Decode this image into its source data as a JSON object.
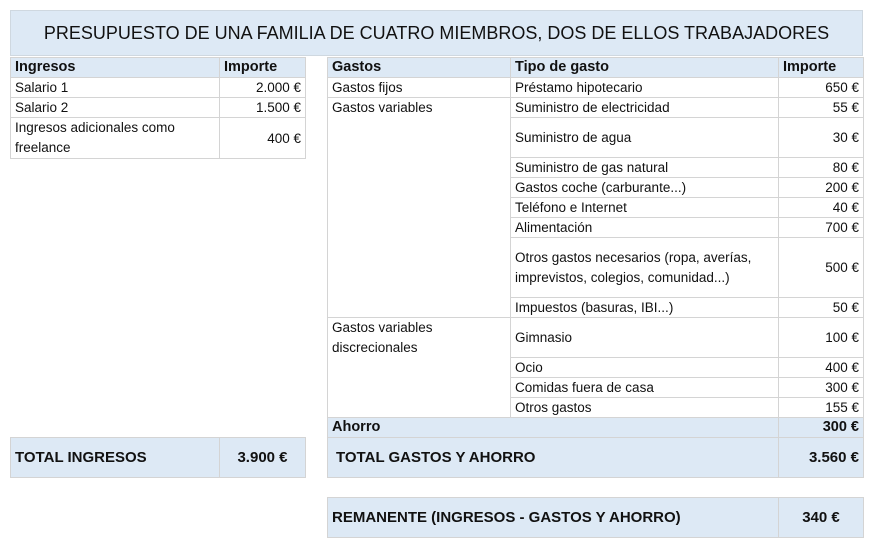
{
  "title": "PRESUPUESTO DE UNA FAMILIA DE CUATRO MIEMBROS, DOS DE ELLOS TRABAJADORES",
  "colors": {
    "header_bg": "#dde9f5",
    "border": "#d4d4d4"
  },
  "ingresos": {
    "headers": [
      "Ingresos",
      "Importe"
    ],
    "rows": [
      {
        "concepto": "Salario 1",
        "importe": "2.000 €"
      },
      {
        "concepto": "Salario 2",
        "importe": "1.500 €"
      },
      {
        "concepto": "Ingresos adicionales como freelance",
        "importe": "400 €"
      }
    ],
    "total_label": "TOTAL INGRESOS",
    "total_value": "3.900 €"
  },
  "gastos": {
    "headers": [
      "Gastos",
      "Tipo de gasto",
      "Importe"
    ],
    "categories": [
      "Gastos fijos",
      "Gastos variables",
      "Gastos variables discrecionales"
    ],
    "rows": [
      {
        "tipo": "Préstamo hipotecario",
        "importe": "650 €"
      },
      {
        "tipo": "Suministro de electricidad",
        "importe": "55 €"
      },
      {
        "tipo": "Suministro de agua",
        "importe": "30 €"
      },
      {
        "tipo": "Suministro de gas natural",
        "importe": "80 €"
      },
      {
        "tipo": "Gastos coche (carburante...)",
        "importe": "200 €"
      },
      {
        "tipo": "Teléfono e Internet",
        "importe": "40 €"
      },
      {
        "tipo": "Alimentación",
        "importe": "700 €"
      },
      {
        "tipo": "Otros gastos necesarios (ropa, averías, imprevistos,  colegios, comunidad...)",
        "importe": "500 €"
      },
      {
        "tipo": "Impuestos (basuras, IBI...)",
        "importe": "50 €"
      },
      {
        "tipo": "Gimnasio",
        "importe": "100 €"
      },
      {
        "tipo": "Ocio",
        "importe": "400 €"
      },
      {
        "tipo": "Comidas fuera de casa",
        "importe": "300 €"
      },
      {
        "tipo": "Otros gastos",
        "importe": "155 €"
      }
    ],
    "ahorro_label": "Ahorro",
    "ahorro_value": "300 €",
    "total_label": "TOTAL GASTOS Y AHORRO",
    "total_value": "3.560 €"
  },
  "remanente": {
    "label": "REMANENTE (INGRESOS - GASTOS Y AHORRO)",
    "value": "340 €"
  }
}
